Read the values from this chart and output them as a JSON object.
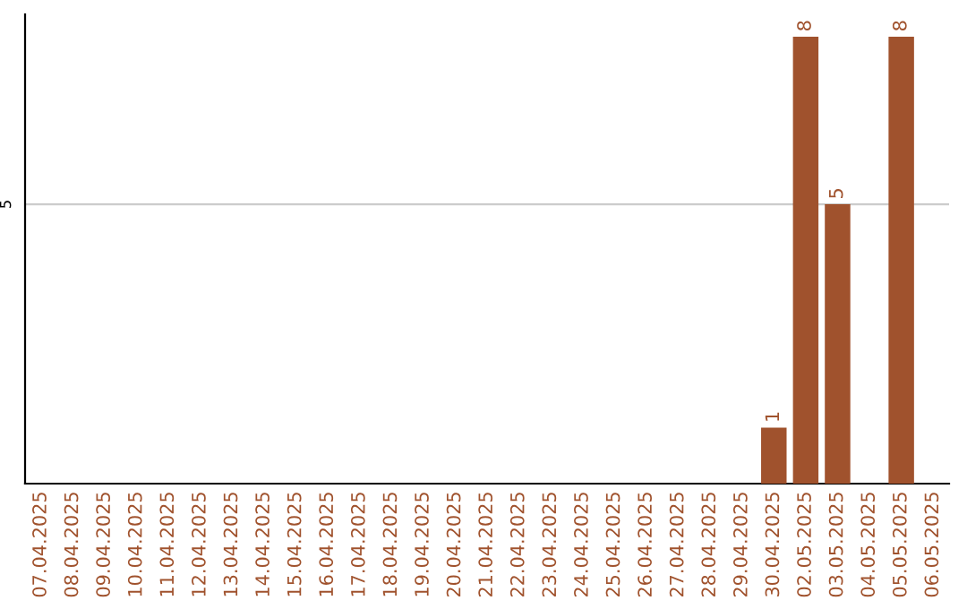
{
  "chart_data": {
    "type": "bar",
    "categories": [
      "07.04.2025",
      "08.04.2025",
      "09.04.2025",
      "10.04.2025",
      "11.04.2025",
      "12.04.2025",
      "13.04.2025",
      "14.04.2025",
      "15.04.2025",
      "16.04.2025",
      "17.04.2025",
      "18.04.2025",
      "19.04.2025",
      "20.04.2025",
      "21.04.2025",
      "22.04.2025",
      "23.04.2025",
      "24.04.2025",
      "25.04.2025",
      "26.04.2025",
      "27.04.2025",
      "28.04.2025",
      "29.04.2025",
      "30.04.2025",
      "02.05.2025",
      "03.05.2025",
      "04.05.2025",
      "05.05.2025",
      "06.05.2025"
    ],
    "values": [
      null,
      null,
      null,
      null,
      null,
      null,
      null,
      null,
      null,
      null,
      null,
      null,
      null,
      null,
      null,
      null,
      null,
      null,
      null,
      null,
      null,
      null,
      null,
      1,
      8,
      5,
      null,
      8,
      null
    ],
    "data_labels": true,
    "color": "#a0522d",
    "ref_lines": [
      {
        "axis": "y",
        "value": 5,
        "label": "5",
        "color": "#cccccc"
      }
    ]
  }
}
